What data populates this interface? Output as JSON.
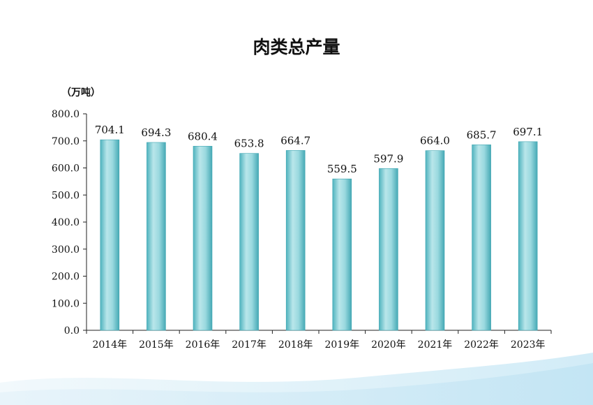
{
  "chart_data": {
    "type": "bar",
    "title": "肉类总产量",
    "unit_label": "（万吨）",
    "categories": [
      "2014年",
      "2015年",
      "2016年",
      "2017年",
      "2018年",
      "2019年",
      "2020年",
      "2021年",
      "2022年",
      "2023年"
    ],
    "values": [
      704.1,
      694.3,
      680.4,
      653.8,
      664.7,
      559.5,
      597.9,
      664.0,
      685.7,
      697.1
    ],
    "value_labels": [
      "704.1",
      "694.3",
      "680.4",
      "653.8",
      "664.7",
      "559.5",
      "597.9",
      "664.0",
      "685.7",
      "697.1"
    ],
    "ylim": [
      0,
      800
    ],
    "y_ticks": [
      "0.0",
      "100.0",
      "200.0",
      "300.0",
      "400.0",
      "500.0",
      "600.0",
      "700.0",
      "800.0"
    ],
    "grid": false,
    "bar_color": "#7ECBD3",
    "bar_edge_color": "#3FA6B2",
    "xlabel": "",
    "ylabel": ""
  }
}
